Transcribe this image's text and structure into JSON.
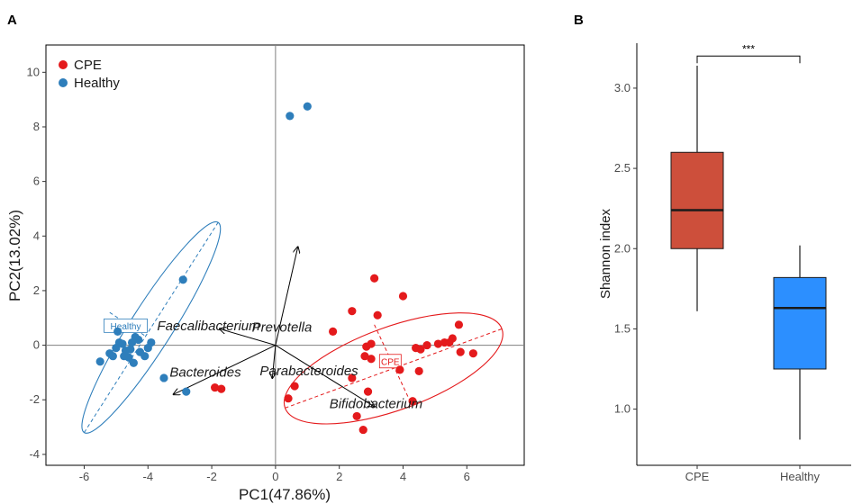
{
  "figure": {
    "panel_a_label": "A",
    "panel_b_label": "B",
    "colors": {
      "cpe": "#e41a1c",
      "healthy": "#2e7ebb",
      "box_cpe": "#cd4f3b",
      "box_healthy": "#2c8fff",
      "axis": "#000000",
      "refline": "#808080"
    }
  },
  "chart_data": [
    {
      "type": "scatter",
      "name": "PCA biplot",
      "xlabel": "PC1(47.86%)",
      "ylabel": "PC2(13.02%)",
      "xlim": [
        -7.2,
        7.8
      ],
      "ylim": [
        -4.4,
        11.0
      ],
      "xticks": [
        -6,
        -4,
        -2,
        0,
        2,
        4,
        6
      ],
      "yticks": [
        -4,
        -2,
        0,
        2,
        4,
        6,
        8,
        10
      ],
      "reference_lines": {
        "x": 0,
        "y": 0
      },
      "legend": {
        "position": "top-left",
        "entries": [
          "CPE",
          "Healthy"
        ]
      },
      "series": [
        {
          "name": "CPE",
          "points": [
            [
              3.1,
              2.45
            ],
            [
              3.2,
              1.1
            ],
            [
              4.0,
              1.8
            ],
            [
              2.4,
              1.25
            ],
            [
              1.8,
              0.5
            ],
            [
              2.85,
              -0.05
            ],
            [
              3.0,
              0.05
            ],
            [
              2.8,
              -0.4
            ],
            [
              3.0,
              -0.5
            ],
            [
              3.9,
              -0.9
            ],
            [
              4.5,
              -0.95
            ],
            [
              4.55,
              -0.15
            ],
            [
              4.75,
              0.0
            ],
            [
              4.4,
              -0.1
            ],
            [
              5.1,
              0.05
            ],
            [
              5.3,
              0.1
            ],
            [
              5.45,
              0.1
            ],
            [
              5.55,
              0.25
            ],
            [
              5.75,
              0.75
            ],
            [
              5.8,
              -0.25
            ],
            [
              6.2,
              -0.3
            ],
            [
              4.3,
              -2.05
            ],
            [
              2.4,
              -1.2
            ],
            [
              2.9,
              -1.7
            ],
            [
              0.6,
              -1.5
            ],
            [
              0.4,
              -1.95
            ],
            [
              2.55,
              -2.6
            ],
            [
              2.75,
              -3.1
            ],
            [
              -1.9,
              -1.55
            ],
            [
              -1.7,
              -1.6
            ]
          ]
        },
        {
          "name": "Healthy",
          "points": [
            [
              0.45,
              8.4
            ],
            [
              1.0,
              8.75
            ],
            [
              -2.9,
              2.4
            ],
            [
              -3.5,
              -1.2
            ],
            [
              -2.8,
              -1.7
            ],
            [
              -5.5,
              -0.6
            ],
            [
              -5.2,
              -0.3
            ],
            [
              -5.0,
              -0.1
            ],
            [
              -4.9,
              0.1
            ],
            [
              -4.95,
              0.5
            ],
            [
              -4.7,
              -0.2
            ],
            [
              -4.6,
              -0.45
            ],
            [
              -4.75,
              -0.4
            ],
            [
              -4.5,
              0.1
            ],
            [
              -4.4,
              0.3
            ],
            [
              -4.25,
              -0.25
            ],
            [
              -4.1,
              -0.4
            ],
            [
              -4.0,
              -0.1
            ],
            [
              -3.9,
              0.1
            ],
            [
              -4.45,
              -0.65
            ],
            [
              -4.3,
              0.2
            ],
            [
              -5.1,
              -0.4
            ],
            [
              -4.55,
              -0.15
            ],
            [
              -4.8,
              0.05
            ]
          ]
        }
      ],
      "ellipses": [
        {
          "group": "Healthy",
          "label": "Healthy",
          "center": [
            -4.7,
            0.7
          ],
          "major_axis": [
            [
              -6.0,
              -3.2
            ],
            [
              -1.8,
              4.5
            ]
          ],
          "minor_axis": [
            [
              -5.2,
              1.2
            ],
            [
              -4.1,
              0.35
            ]
          ]
        },
        {
          "group": "CPE",
          "label": "CPE",
          "center": [
            3.6,
            -0.6
          ],
          "major_axis": [
            [
              0.3,
              -2.3
            ],
            [
              7.1,
              0.6
            ]
          ],
          "minor_axis": [
            [
              3.1,
              0.75
            ],
            [
              4.2,
              -2.0
            ]
          ]
        }
      ],
      "loadings": [
        {
          "name": "Prevotella",
          "tip": [
            0.7,
            3.6
          ]
        },
        {
          "name": "Faecalibacterium",
          "tip": [
            -1.75,
            0.6
          ]
        },
        {
          "name": "Bacteroides",
          "tip": [
            -3.2,
            -1.8
          ]
        },
        {
          "name": "Parabacteroides",
          "tip": [
            -0.1,
            -1.2
          ]
        },
        {
          "name": "Bifidobacterium",
          "tip": [
            3.1,
            -2.25
          ]
        }
      ]
    },
    {
      "type": "box",
      "name": "Shannon diversity",
      "categories": [
        "CPE",
        "Healthy"
      ],
      "ylabel": "Shannon index",
      "xlabel": "",
      "ylim": [
        0.65,
        3.28
      ],
      "yticks": [
        1.0,
        1.5,
        2.0,
        2.5,
        3.0
      ],
      "boxes": [
        {
          "category": "CPE",
          "min": 1.61,
          "q1": 2.0,
          "median": 2.24,
          "q3": 2.6,
          "max": 3.14
        },
        {
          "category": "Healthy",
          "min": 0.81,
          "q1": 1.25,
          "median": 1.63,
          "q3": 1.82,
          "max": 2.02
        }
      ],
      "significance": {
        "label": "***",
        "between": [
          "CPE",
          "Healthy"
        ],
        "level": 3.2
      }
    }
  ]
}
